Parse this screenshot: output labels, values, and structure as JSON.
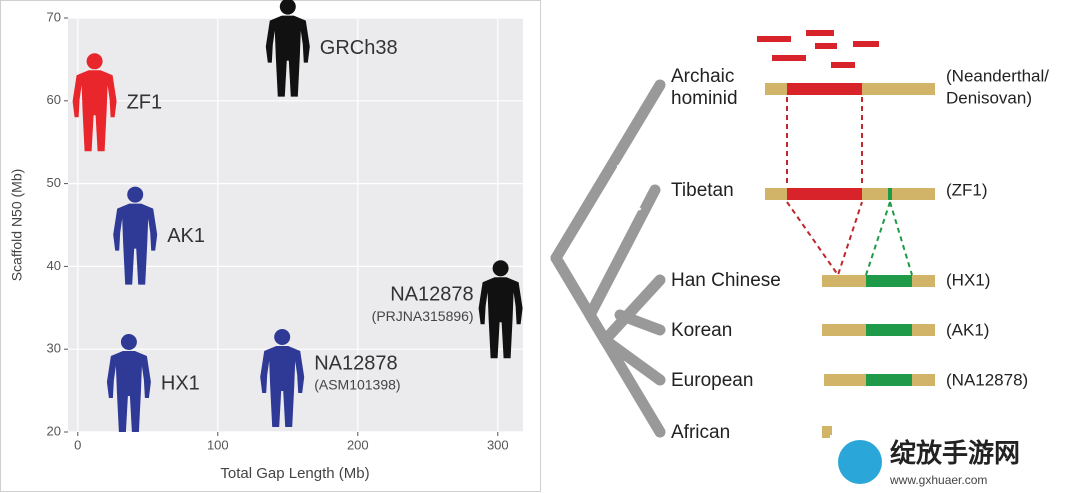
{
  "chart_data": {
    "type": "scatter",
    "x_label": "Total Gap Length (Mb)",
    "y_label": "Scaffold N50 (Mb)",
    "xlim": [
      -7,
      318
    ],
    "ylim": [
      20,
      70
    ],
    "xticks": [
      0,
      100,
      200,
      300
    ],
    "yticks": [
      20,
      30,
      40,
      50,
      60,
      70
    ],
    "grid": true,
    "points": [
      {
        "name": "ZF1",
        "x": 12,
        "y": 59.7,
        "color": "#e8262b"
      },
      {
        "name": "GRCh38",
        "x": 150,
        "y": 66.3,
        "color": "#111111"
      },
      {
        "name": "AK1",
        "x": 41,
        "y": 43.6,
        "color": "#2e3a96"
      },
      {
        "name": "NA12878",
        "sublabel": "(PRJNA315896)",
        "x": 302,
        "y": 34.7,
        "color": "#111111"
      },
      {
        "name": "HX1",
        "x": 36.5,
        "y": 25.8,
        "color": "#2e3a96"
      },
      {
        "name": "NA12878",
        "sublabel": "(ASM101398)",
        "x": 146,
        "y": 26.4,
        "color": "#2e3a96"
      }
    ]
  },
  "diagram": {
    "rows": [
      {
        "population": [
          "Archaic",
          "hominid"
        ],
        "sample": [
          "(Neanderthal/",
          "Denisovan)"
        ]
      },
      {
        "population": [
          "Tibetan"
        ],
        "sample": [
          "(ZF1)"
        ]
      },
      {
        "population": [
          "Han Chinese"
        ],
        "sample": [
          "(HX1)"
        ]
      },
      {
        "population": [
          "Korean"
        ],
        "sample": [
          "(AK1)"
        ]
      },
      {
        "population": [
          "European"
        ],
        "sample": [
          "(NA12878)"
        ]
      },
      {
        "population": [
          "African"
        ]
      }
    ]
  },
  "watermark": {
    "name": "绽放手游网",
    "url": "www.gxhuaer.com"
  }
}
